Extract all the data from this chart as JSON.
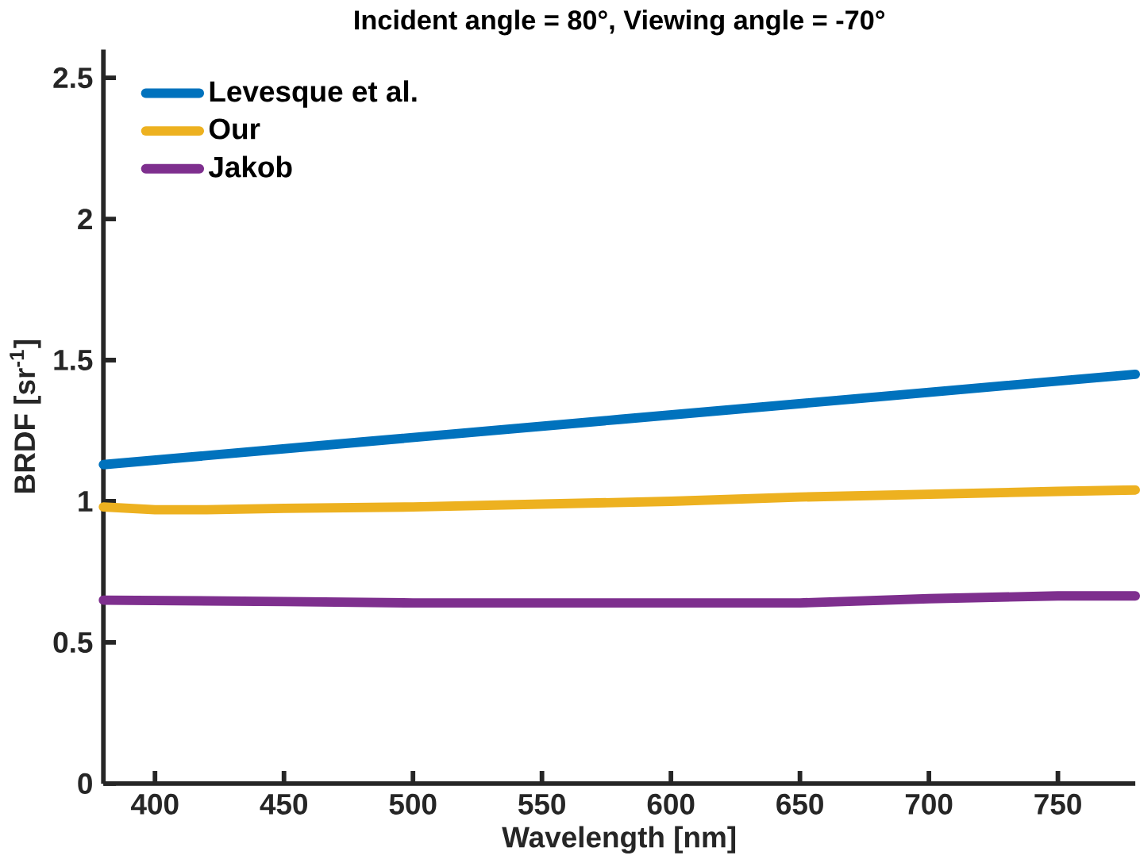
{
  "chart_data": {
    "type": "line",
    "title": "Incident angle = 80°, Viewing angle = -70°",
    "xlabel": "Wavelength [nm]",
    "ylabel": "BRDF [sr$^{-1}$]",
    "xlim": [
      380,
      780
    ],
    "ylim": [
      0,
      2.6
    ],
    "xticks": [
      400,
      450,
      500,
      550,
      600,
      650,
      700,
      750
    ],
    "yticks": [
      0,
      0.5,
      1,
      1.5,
      2,
      2.5
    ],
    "grid": false,
    "legend": "top left",
    "line_style": "solid",
    "marker": "none",
    "series": [
      {
        "name": "Levesque et al.",
        "color": "#0072bd",
        "x": [
          380,
          480,
          580,
          680,
          780
        ],
        "values": [
          1.13,
          1.21,
          1.29,
          1.37,
          1.45
        ]
      },
      {
        "name": "Our",
        "color": "#edb120",
        "x": [
          380,
          400,
          420,
          450,
          500,
          550,
          600,
          650,
          700,
          750,
          780
        ],
        "values": [
          0.98,
          0.97,
          0.97,
          0.975,
          0.98,
          0.99,
          1.0,
          1.015,
          1.025,
          1.035,
          1.04
        ]
      },
      {
        "name": "Jakob",
        "color": "#7e2f8e",
        "x": [
          380,
          450,
          500,
          550,
          600,
          650,
          700,
          750,
          780
        ],
        "values": [
          0.65,
          0.645,
          0.64,
          0.64,
          0.64,
          0.64,
          0.655,
          0.665,
          0.665
        ]
      }
    ]
  }
}
